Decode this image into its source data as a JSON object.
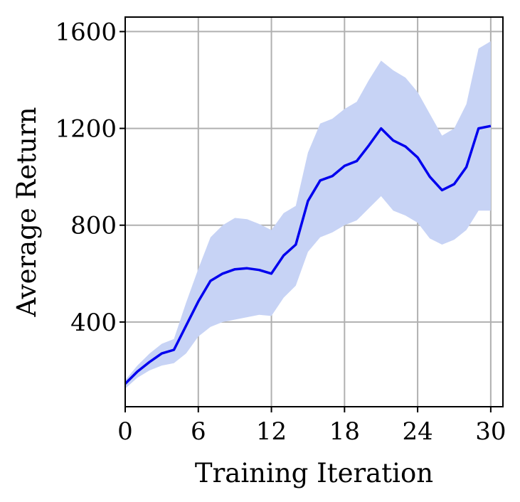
{
  "chart_data": {
    "type": "line",
    "title": "",
    "xlabel": "Training Iteration",
    "ylabel": "Average Return",
    "xlim": [
      0,
      31
    ],
    "ylim": [
      50,
      1660
    ],
    "xticks": [
      0,
      6,
      12,
      18,
      24,
      30
    ],
    "yticks": [
      400,
      800,
      1200,
      1600
    ],
    "xtick_labels": [
      "0",
      "6",
      "12",
      "18",
      "24",
      "30"
    ],
    "ytick_labels": [
      "400",
      "800",
      "1200",
      "1600"
    ],
    "grid": true,
    "legend": "none",
    "series": [
      {
        "color": "#0000ee",
        "x": [
          0,
          1,
          2,
          3,
          4,
          5,
          6,
          7,
          8,
          9,
          10,
          11,
          12,
          13,
          14,
          15,
          16,
          17,
          18,
          19,
          20,
          21,
          22,
          23,
          24,
          25,
          26,
          27,
          28,
          29,
          30
        ],
        "values": [
          145,
          195,
          235,
          270,
          285,
          385,
          485,
          570,
          600,
          618,
          622,
          615,
          600,
          675,
          720,
          900,
          985,
          1003,
          1045,
          1065,
          1130,
          1200,
          1150,
          1125,
          1080,
          1000,
          945,
          970,
          1040,
          1200,
          1210
        ],
        "band": {
          "color": "#c7d3f5",
          "lower": [
            125,
            170,
            200,
            220,
            230,
            270,
            340,
            380,
            400,
            410,
            420,
            430,
            425,
            500,
            550,
            690,
            750,
            770,
            800,
            820,
            870,
            920,
            860,
            840,
            810,
            745,
            720,
            740,
            780,
            860,
            860
          ],
          "upper": [
            160,
            220,
            270,
            310,
            330,
            480,
            620,
            750,
            800,
            830,
            825,
            805,
            780,
            850,
            880,
            1100,
            1220,
            1240,
            1280,
            1310,
            1400,
            1480,
            1440,
            1410,
            1350,
            1260,
            1170,
            1200,
            1300,
            1530,
            1560
          ]
        }
      }
    ]
  }
}
